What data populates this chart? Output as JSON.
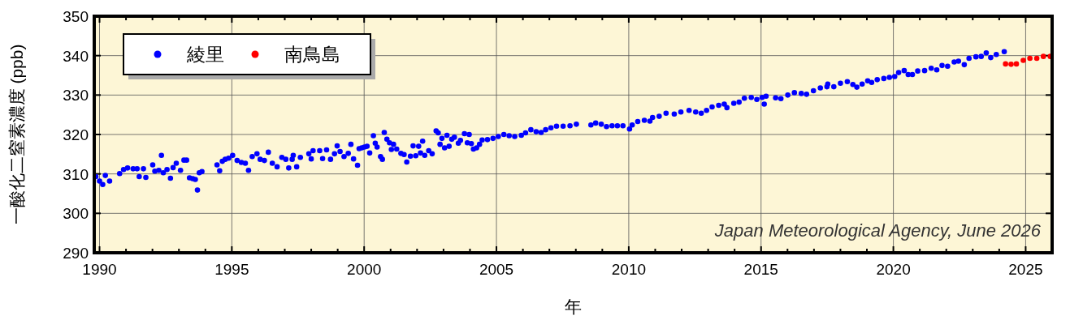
{
  "chart_data": {
    "type": "scatter",
    "xlabel": "年",
    "ylabel": "一酸化二窒素濃度 (ppb)",
    "annotations": [
      "Japan Meteorological Agency, June 2026"
    ],
    "xlim": [
      1989.8,
      2026
    ],
    "ylim": [
      290,
      350
    ],
    "xticks": [
      1990,
      {
        "value": 1991,
        "label": null
      },
      {
        "value": 1992,
        "label": null
      },
      {
        "value": 1993,
        "label": null
      },
      {
        "value": 1994,
        "label": null
      },
      1995,
      {
        "value": 1996,
        "label": null
      },
      {
        "value": 1997,
        "label": null
      },
      {
        "value": 1998,
        "label": null
      },
      {
        "value": 1999,
        "label": null
      },
      2000,
      {
        "value": 2001,
        "label": null
      },
      {
        "value": 2002,
        "label": null
      },
      {
        "value": 2003,
        "label": null
      },
      {
        "value": 2004,
        "label": null
      },
      2005,
      {
        "value": 2006,
        "label": null
      },
      {
        "value": 2007,
        "label": null
      },
      {
        "value": 2008,
        "label": null
      },
      {
        "value": 2009,
        "label": null
      },
      2010,
      {
        "value": 2011,
        "label": null
      },
      {
        "value": 2012,
        "label": null
      },
      {
        "value": 2013,
        "label": null
      },
      {
        "value": 2014,
        "label": null
      },
      2015,
      {
        "value": 2016,
        "label": null
      },
      {
        "value": 2017,
        "label": null
      },
      {
        "value": 2018,
        "label": null
      },
      {
        "value": 2019,
        "label": null
      },
      2020,
      {
        "value": 2021,
        "label": null
      },
      {
        "value": 2022,
        "label": null
      },
      {
        "value": 2023,
        "label": null
      },
      {
        "value": 2024,
        "label": null
      },
      2025
    ],
    "yticks": [
      290,
      300,
      310,
      320,
      330,
      340,
      350
    ],
    "grid": true,
    "legend": "top left",
    "marker": "circle",
    "series": [
      {
        "name": "綾里",
        "color": "#0000ff",
        "x": [
          1989.86,
          1990.0,
          1990.12,
          1990.22,
          1990.38,
          1990.76,
          1990.91,
          1991.06,
          1991.27,
          1991.42,
          1991.5,
          1991.66,
          1991.75,
          1992.01,
          1992.09,
          1992.24,
          1992.34,
          1992.41,
          1992.55,
          1992.68,
          1992.78,
          1992.9,
          1993.06,
          1993.19,
          1993.29,
          1993.4,
          1993.52,
          1993.62,
          1993.7,
          1993.77,
          1993.87,
          1994.44,
          1994.54,
          1994.64,
          1994.75,
          1994.88,
          1995.03,
          1995.2,
          1995.36,
          1995.51,
          1995.63,
          1995.77,
          1995.95,
          1996.07,
          1996.23,
          1996.38,
          1996.53,
          1996.71,
          1996.89,
          1997.04,
          1997.15,
          1997.28,
          1997.32,
          1997.45,
          1997.59,
          1997.91,
          1998.0,
          1998.07,
          1998.32,
          1998.43,
          1998.58,
          1998.73,
          1998.88,
          1998.98,
          1999.09,
          1999.24,
          1999.4,
          1999.5,
          1999.6,
          1999.75,
          1999.81,
          1999.91,
          2000.01,
          2000.11,
          2000.21,
          2000.35,
          2000.42,
          2000.49,
          2000.62,
          2000.69,
          2000.76,
          2000.86,
          2000.96,
          2001.03,
          2001.11,
          2001.23,
          2001.39,
          2001.51,
          2001.61,
          2001.75,
          2001.85,
          2001.95,
          2002.06,
          2002.13,
          2002.21,
          2002.29,
          2002.44,
          2002.57,
          2002.72,
          2002.8,
          2002.87,
          2002.94,
          2003.04,
          2003.13,
          2003.21,
          2003.31,
          2003.41,
          2003.56,
          2003.64,
          2003.79,
          2003.9,
          2003.97,
          2004.05,
          2004.13,
          2004.25,
          2004.36,
          2004.46,
          2004.66,
          2004.87,
          2005.07,
          2005.28,
          2005.48,
          2005.69,
          2005.94,
          2006.1,
          2006.3,
          2006.5,
          2006.69,
          2006.86,
          2007.06,
          2007.27,
          2007.52,
          2007.78,
          2008.02,
          2008.57,
          2008.75,
          2008.96,
          2009.16,
          2009.37,
          2009.57,
          2009.78,
          2010.03,
          2010.13,
          2010.34,
          2010.59,
          2010.8,
          2010.9,
          2011.15,
          2011.41,
          2011.72,
          2011.97,
          2012.28,
          2012.53,
          2012.74,
          2012.94,
          2013.15,
          2013.4,
          2013.61,
          2013.71,
          2013.97,
          2014.17,
          2014.37,
          2014.63,
          2014.84,
          2015.04,
          2015.12,
          2015.19,
          2015.55,
          2015.75,
          2016.01,
          2016.26,
          2016.52,
          2016.72,
          2016.98,
          2017.24,
          2017.49,
          2017.52,
          2017.75,
          2018.0,
          2018.26,
          2018.47,
          2018.62,
          2018.82,
          2019.03,
          2019.18,
          2019.39,
          2019.64,
          2019.85,
          2020.05,
          2020.2,
          2020.41,
          2020.56,
          2020.72,
          2020.92,
          2021.18,
          2021.43,
          2021.64,
          2021.84,
          2022.05,
          2022.3,
          2022.46,
          2022.68,
          2022.86,
          2023.12,
          2023.32,
          2023.51,
          2023.68,
          2023.89,
          2024.19
        ],
        "values": [
          309.3,
          308.2,
          307.3,
          309.6,
          308.2,
          310.1,
          311.1,
          311.5,
          311.3,
          311.3,
          309.3,
          311.3,
          309.1,
          312.3,
          310.7,
          310.9,
          314.7,
          310.3,
          311.1,
          308.9,
          311.6,
          312.7,
          310.9,
          313.5,
          313.5,
          309.0,
          308.8,
          308.6,
          305.9,
          310.3,
          310.6,
          312.3,
          310.8,
          313.2,
          313.7,
          314.0,
          314.7,
          313.4,
          312.9,
          312.7,
          310.9,
          314.4,
          315.1,
          313.7,
          313.4,
          315.5,
          312.7,
          311.8,
          314.2,
          313.7,
          311.5,
          313.7,
          314.7,
          311.8,
          314.2,
          315.1,
          313.8,
          315.9,
          315.9,
          313.9,
          316.1,
          313.7,
          315.1,
          317.1,
          315.7,
          314.4,
          315.2,
          317.5,
          313.8,
          312.2,
          316.4,
          316.6,
          316.8,
          317.0,
          315.3,
          319.7,
          317.8,
          316.8,
          314.4,
          313.7,
          320.5,
          318.8,
          317.9,
          316.2,
          317.5,
          316.3,
          315.2,
          314.9,
          313.0,
          314.5,
          317.1,
          314.6,
          317.0,
          315.3,
          318.3,
          314.7,
          315.9,
          315.1,
          320.9,
          320.4,
          317.5,
          319.0,
          316.6,
          319.8,
          317.0,
          318.8,
          319.3,
          317.8,
          318.5,
          320.2,
          317.9,
          320.0,
          317.7,
          316.3,
          316.6,
          317.5,
          318.6,
          318.7,
          319.0,
          319.5,
          320.0,
          319.7,
          319.5,
          319.8,
          320.4,
          321.2,
          320.7,
          320.5,
          321.2,
          321.7,
          322.1,
          322.1,
          322.2,
          322.6,
          322.4,
          322.9,
          322.6,
          322.0,
          322.2,
          322.2,
          322.2,
          321.4,
          322.4,
          323.3,
          323.6,
          323.4,
          324.3,
          324.6,
          325.4,
          325.2,
          325.7,
          326.1,
          325.7,
          325.4,
          326.1,
          327.0,
          327.4,
          327.7,
          326.8,
          327.9,
          328.2,
          329.2,
          329.4,
          328.9,
          329.4,
          327.7,
          329.7,
          329.3,
          329.1,
          330.0,
          330.6,
          330.4,
          330.2,
          331.1,
          331.8,
          332.1,
          332.8,
          332.1,
          333.0,
          333.4,
          332.7,
          332.0,
          332.8,
          333.6,
          333.2,
          333.9,
          334.2,
          334.5,
          334.7,
          335.7,
          336.2,
          335.2,
          335.2,
          336.1,
          336.2,
          336.8,
          336.4,
          337.5,
          337.3,
          338.4,
          338.6,
          337.7,
          339.3,
          339.7,
          339.8,
          340.7,
          339.5,
          340.3,
          341.0
        ]
      },
      {
        "name": "南鳥島",
        "color": "#ff0000",
        "x": [
          2024.24,
          2024.45,
          2024.65,
          2024.91,
          2025.16,
          2025.42,
          2025.67,
          2025.93
        ],
        "values": [
          337.9,
          337.8,
          337.9,
          338.8,
          339.3,
          339.3,
          339.8,
          339.8
        ]
      }
    ]
  }
}
